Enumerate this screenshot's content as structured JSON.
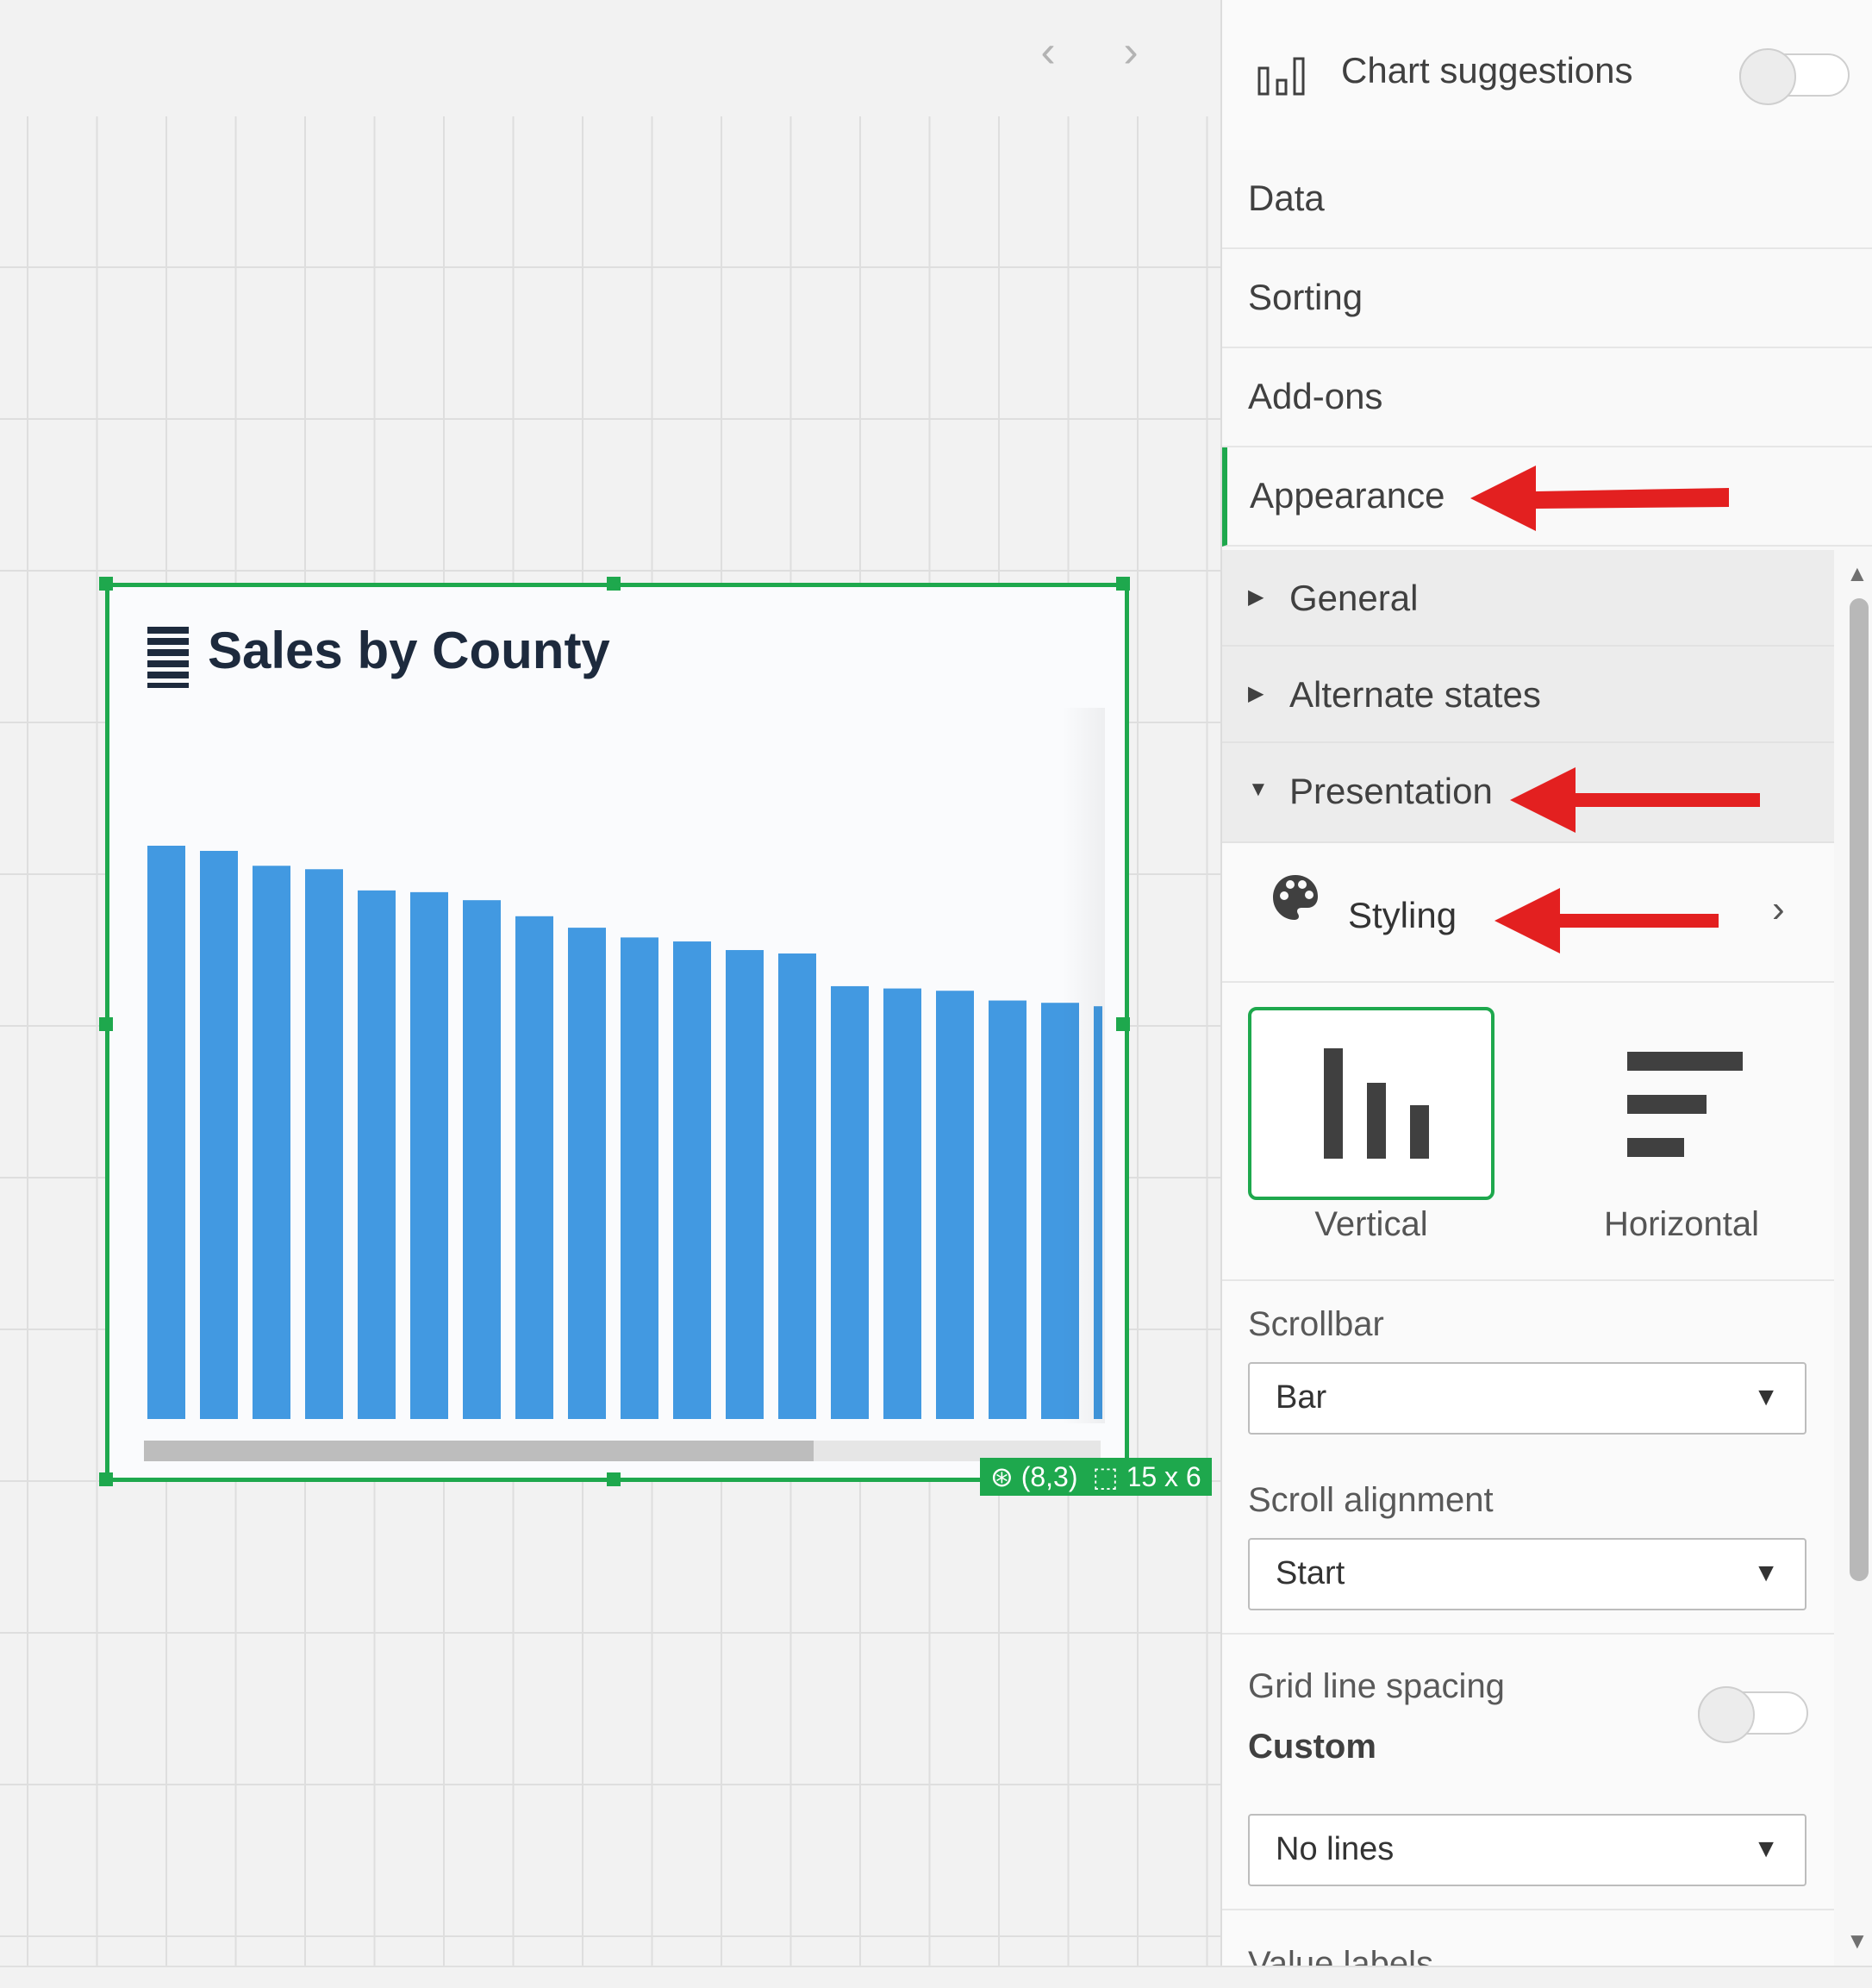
{
  "canvas": {
    "nav_prev_icon": "chevron-left-icon",
    "nav_next_icon": "chevron-right-icon",
    "chart": {
      "title": "Sales by County",
      "title_icon": "bar-chart-list-icon",
      "position_text": "(8,3)",
      "size_text": "15 x 6",
      "bar_color": "#4299e1",
      "selection_color": "#1ea84d"
    }
  },
  "chart_data": {
    "type": "bar",
    "title": "Sales by County",
    "categories": [
      "",
      "",
      "",
      "",
      "",
      "",
      "",
      "",
      "",
      "",
      "",
      "",
      "",
      "",
      "",
      "",
      "",
      "",
      ""
    ],
    "values": [
      100,
      99.1,
      96.5,
      95.9,
      92.2,
      91.9,
      90.5,
      87.7,
      85.7,
      84.0,
      83.3,
      81.8,
      81.2,
      75.5,
      75.1,
      74.7,
      73.0,
      72.6,
      72.0
    ],
    "ylim": [
      0,
      100
    ],
    "grid": false,
    "legend": "none",
    "scrollbar": true
  },
  "panel": {
    "header": {
      "icon": "chart-suggestions-icon",
      "title": "Chart suggestions",
      "toggle_on": false
    },
    "nav": [
      {
        "label": "Data"
      },
      {
        "label": "Sorting"
      },
      {
        "label": "Add-ons"
      },
      {
        "label": "Appearance",
        "active": true
      }
    ],
    "sections": [
      {
        "label": "General",
        "expanded": false
      },
      {
        "label": "Alternate states",
        "expanded": false
      },
      {
        "label": "Presentation",
        "expanded": true
      }
    ],
    "styling": {
      "label": "Styling",
      "icon": "palette-icon",
      "chevron": "chevron-right-icon"
    },
    "orientation": {
      "options": [
        {
          "label": "Vertical",
          "selected": true,
          "icon": "vertical-bars-icon"
        },
        {
          "label": "Horizontal",
          "selected": false,
          "icon": "horizontal-bars-icon"
        }
      ]
    },
    "scrollbar": {
      "label": "Scrollbar",
      "value": "Bar"
    },
    "scroll_alignment": {
      "label": "Scroll alignment",
      "value": "Start"
    },
    "grid_line_spacing": {
      "label": "Grid line spacing",
      "toggle_on": false,
      "sub_label": "Custom",
      "value": "No lines"
    },
    "value_labels": {
      "label": "Value labels"
    }
  },
  "annotations": {
    "arrow_color": "#e32020",
    "arrow_icon": "red-arrow-left-icon"
  }
}
